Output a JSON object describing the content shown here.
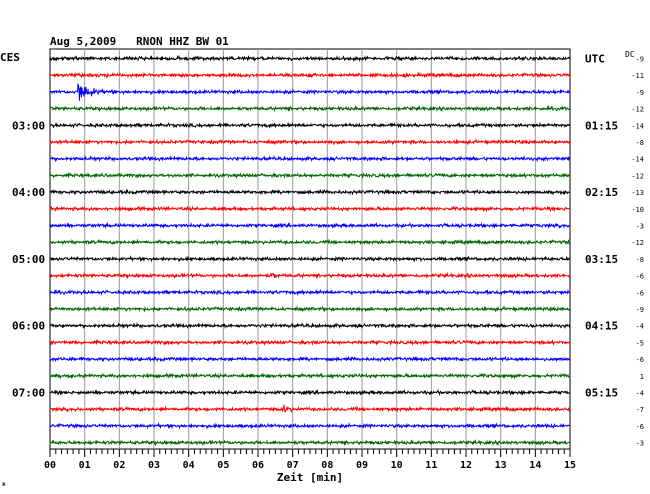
{
  "chart_data": {
    "type": "line",
    "title": "Aug 5,2009   RNON HHZ BW 01",
    "xlabel": "Zeit [min]",
    "left_zone": "CES",
    "right_zone": "UTC",
    "dc_label": "DC",
    "x_ticks": [
      "00",
      "01",
      "02",
      "03",
      "04",
      "05",
      "06",
      "07",
      "08",
      "09",
      "10",
      "11",
      "12",
      "13",
      "14",
      "15"
    ],
    "xlim": [
      0,
      15
    ],
    "grid": true,
    "left_time_labels": [
      {
        "trace": 4,
        "text": "03:00"
      },
      {
        "trace": 8,
        "text": "04:00"
      },
      {
        "trace": 12,
        "text": "05:00"
      },
      {
        "trace": 16,
        "text": "06:00"
      },
      {
        "trace": 20,
        "text": "07:00"
      }
    ],
    "right_time_labels": [
      {
        "trace": 0,
        "text": "UTC"
      },
      {
        "trace": 4,
        "text": "01:15"
      },
      {
        "trace": 8,
        "text": "02:15"
      },
      {
        "trace": 12,
        "text": "03:15"
      },
      {
        "trace": 16,
        "text": "04:15"
      },
      {
        "trace": 20,
        "text": "05:15"
      }
    ],
    "dc_offsets": [
      "-9",
      "-11",
      "-9",
      "-12",
      "-14",
      "-8",
      "-14",
      "-12",
      "-13",
      "-10",
      "-3",
      "-12",
      "-8",
      "-6",
      "-6",
      "-9",
      "-4",
      "-5",
      "-6",
      "1",
      "-4",
      "-7",
      "-6",
      "-3"
    ],
    "colors": [
      "#000000",
      "#ff0000",
      "#0000ff",
      "#006400"
    ],
    "events": [
      {
        "trace": 2,
        "minute": 0.85,
        "amplitude": 1.0,
        "duration_min": 1.1
      },
      {
        "trace": 21,
        "minute": 6.75,
        "amplitude": 0.45,
        "duration_min": 0.5
      },
      {
        "trace": 13,
        "minute": 6.4,
        "amplitude": 0.2,
        "duration_min": 0.5
      }
    ]
  }
}
